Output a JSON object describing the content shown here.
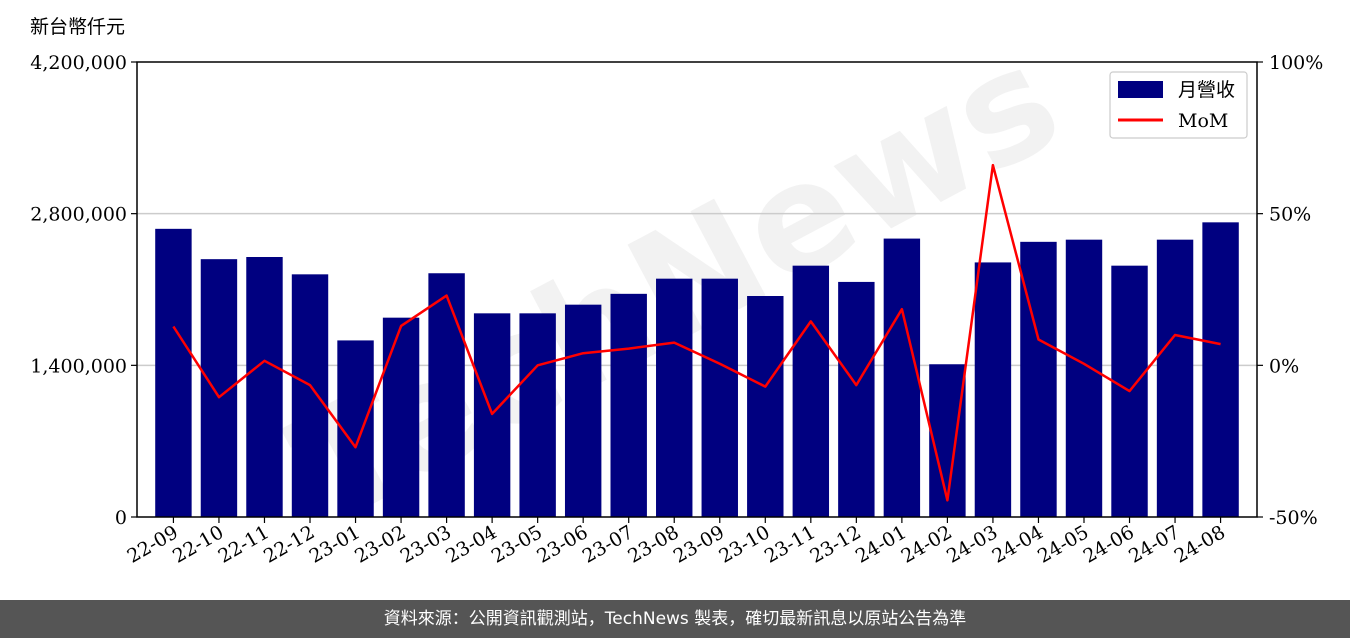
{
  "chart_data": {
    "type": "bar",
    "unit_label": "新台幣仟元",
    "watermark": "TechNews",
    "categories": [
      "22-09",
      "22-10",
      "22-11",
      "22-12",
      "23-01",
      "23-02",
      "23-03",
      "23-04",
      "23-05",
      "23-06",
      "23-07",
      "23-08",
      "23-09",
      "23-10",
      "23-11",
      "23-12",
      "24-01",
      "24-02",
      "24-03",
      "24-04",
      "24-05",
      "24-06",
      "24-07",
      "24-08"
    ],
    "series": [
      {
        "name": "月營收",
        "type": "bar",
        "axis": "left",
        "color": "#000080",
        "values": [
          2660000,
          2380000,
          2400000,
          2240000,
          1630000,
          1840000,
          2250000,
          1880000,
          1880000,
          1960000,
          2060000,
          2200000,
          2200000,
          2040000,
          2320000,
          2170000,
          2570000,
          1410000,
          2350000,
          2540000,
          2560000,
          2320000,
          2560000,
          2720000
        ]
      },
      {
        "name": "MoM",
        "type": "line",
        "axis": "right",
        "color": "#ff0000",
        "values": [
          12.8,
          -10.5,
          1.5,
          -6.5,
          -27,
          13,
          23,
          -16,
          0,
          4,
          5.5,
          7.5,
          0.5,
          -7,
          14.5,
          -6.5,
          18.5,
          -44.5,
          66,
          8.5,
          0.5,
          -8.5,
          10,
          7
        ]
      }
    ],
    "left_axis": {
      "ylim": [
        0,
        4200000
      ],
      "ticks": [
        "0",
        "1,400,000",
        "2,800,000",
        "4,200,000"
      ]
    },
    "right_axis": {
      "ylim": [
        -50,
        100
      ],
      "ticks": [
        "-50%",
        "0%",
        "50%",
        "100%"
      ]
    },
    "grid": "horizontal",
    "legend": "top-right"
  },
  "footer": {
    "text": "資料來源：公開資訊觀測站，TechNews 製表，確切最新訊息以原站公告為準"
  }
}
